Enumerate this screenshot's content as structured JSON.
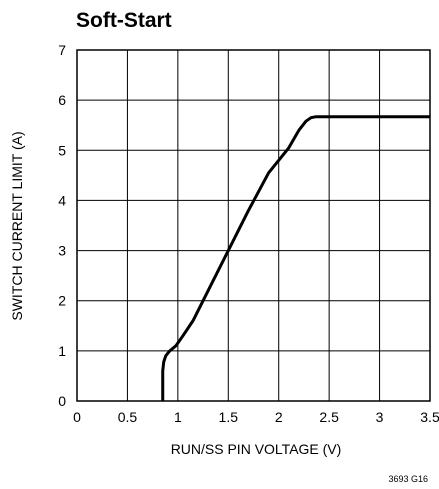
{
  "chart_data": {
    "type": "line",
    "title": "Soft-Start",
    "xlabel": "RUN/SS PIN VOLTAGE (V)",
    "ylabel": "SWITCH CURRENT LIMIT (A)",
    "xlim": [
      0,
      3.5
    ],
    "ylim": [
      0,
      7
    ],
    "x_ticks": [
      "0",
      "0.5",
      "1",
      "1.5",
      "2",
      "2.5",
      "3",
      "3.5"
    ],
    "y_ticks": [
      "0",
      "1",
      "2",
      "3",
      "4",
      "5",
      "6",
      "7"
    ],
    "grid": true,
    "series": [
      {
        "x": [
          0.85,
          0.85,
          0.86,
          0.88,
          0.92,
          0.98,
          1.05,
          1.15,
          1.3,
          1.5,
          1.7,
          1.9,
          2.1,
          2.2,
          2.27,
          2.32,
          2.37,
          2.45,
          3.0,
          3.5
        ],
        "y": [
          0.0,
          0.6,
          0.78,
          0.9,
          1.0,
          1.1,
          1.3,
          1.6,
          2.2,
          3.0,
          3.8,
          4.55,
          5.05,
          5.4,
          5.58,
          5.65,
          5.67,
          5.67,
          5.67,
          5.67
        ]
      }
    ],
    "figure_id": "3693 G16"
  }
}
